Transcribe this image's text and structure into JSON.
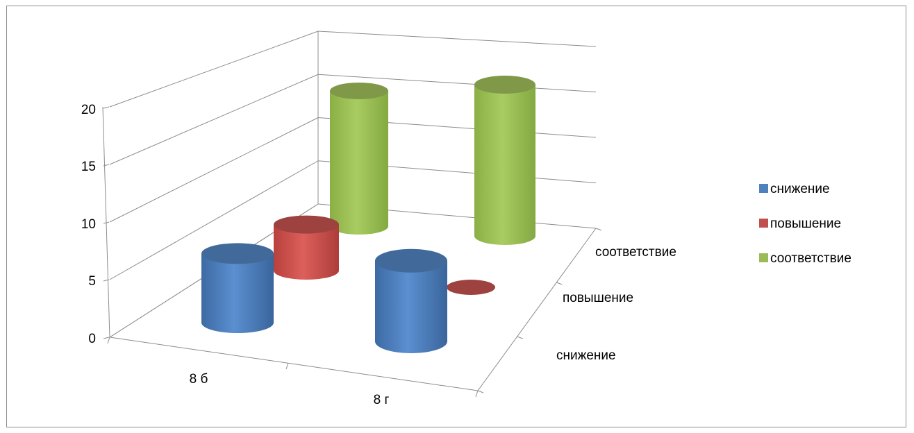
{
  "chart_data": {
    "type": "bar",
    "style": "3d-cylinder",
    "categories": [
      "8 б",
      "8 г"
    ],
    "depth_labels": [
      "снижение",
      "повышение",
      "соответствие"
    ],
    "series": [
      {
        "name": "снижение",
        "color": "#4f81bd",
        "values": [
          6,
          7
        ]
      },
      {
        "name": "повышение",
        "color": "#c0504d",
        "values": [
          4,
          0
        ]
      },
      {
        "name": "соответствие",
        "color": "#9bbb59",
        "values": [
          20,
          20
        ]
      }
    ],
    "ylim": [
      0,
      20
    ],
    "yticks": [
      "0",
      "5",
      "10",
      "15",
      "20"
    ],
    "grid": true,
    "legend_position": "right"
  }
}
